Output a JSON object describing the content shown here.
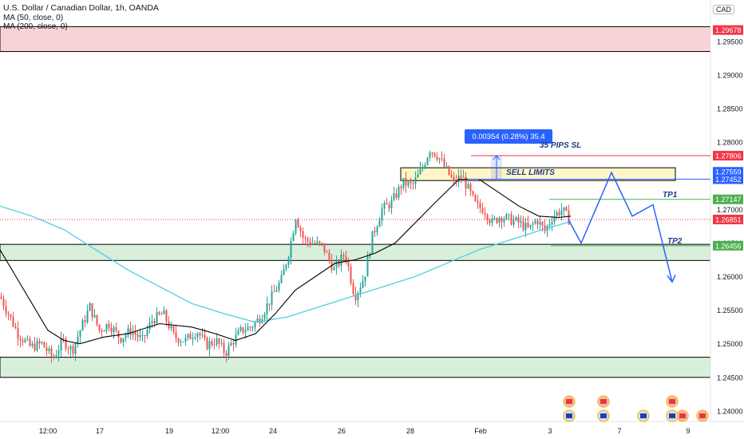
{
  "header": {
    "title": "U.S. Dollar / Canadian Dollar, 1h, OANDA",
    "ma1": "MA (50, close, 0)",
    "ma2": "MA (200, close, 0)",
    "currency": "CAD"
  },
  "colors": {
    "up": "#26a69a",
    "down": "#ef5350",
    "ma50": "#000000",
    "ma200": "#4dd0e1",
    "projection": "#2962ff",
    "price_tag": "#f23645",
    "zone_red": "#f8d3d6",
    "zone_green": "#d7efdb",
    "zone_yellow": "#fff6c8",
    "tp_line": "#4caf50"
  },
  "chart_data": {
    "type": "candlestick",
    "symbol": "USDCAD",
    "interval": "1h",
    "y_range": [
      1.2388,
      1.2982
    ],
    "y_ticks": [
      "1.29500",
      "1.29000",
      "1.28500",
      "1.28000",
      "1.27500",
      "1.27000",
      "1.26500",
      "1.26000",
      "1.25500",
      "1.25000",
      "1.24500",
      "1.24000"
    ],
    "x_ticks": [
      "12:00",
      "17",
      "19",
      "12:00",
      "24",
      "26",
      "28",
      "Feb",
      "3",
      "7",
      "9"
    ],
    "price_path": [
      [
        0,
        1.257
      ],
      [
        10,
        1.2545
      ],
      [
        22,
        1.2515
      ],
      [
        38,
        1.2495
      ],
      [
        52,
        1.25
      ],
      [
        66,
        1.2478
      ],
      [
        78,
        1.2505
      ],
      [
        90,
        1.249
      ],
      [
        100,
        1.252
      ],
      [
        112,
        1.2555
      ],
      [
        124,
        1.252
      ],
      [
        136,
        1.253
      ],
      [
        150,
        1.2508
      ],
      [
        164,
        1.252
      ],
      [
        178,
        1.2505
      ],
      [
        190,
        1.2535
      ],
      [
        204,
        1.2545
      ],
      [
        218,
        1.251
      ],
      [
        232,
        1.2505
      ],
      [
        246,
        1.252
      ],
      [
        258,
        1.2498
      ],
      [
        270,
        1.2505
      ],
      [
        282,
        1.2486
      ],
      [
        292,
        1.2505
      ],
      [
        302,
        1.252
      ],
      [
        314,
        1.2525
      ],
      [
        326,
        1.254
      ],
      [
        340,
        1.257
      ],
      [
        352,
        1.2595
      ],
      [
        362,
        1.264
      ],
      [
        370,
        1.269
      ],
      [
        380,
        1.2655
      ],
      [
        392,
        1.265
      ],
      [
        404,
        1.2645
      ],
      [
        418,
        1.261
      ],
      [
        432,
        1.2635
      ],
      [
        444,
        1.257
      ],
      [
        456,
        1.26
      ],
      [
        466,
        1.266
      ],
      [
        478,
        1.27
      ],
      [
        490,
        1.271
      ],
      [
        504,
        1.274
      ],
      [
        516,
        1.2735
      ],
      [
        528,
        1.276
      ],
      [
        538,
        1.279
      ],
      [
        548,
        1.278
      ],
      [
        558,
        1.276
      ],
      [
        568,
        1.274
      ],
      [
        578,
        1.275
      ],
      [
        586,
        1.273
      ],
      [
        596,
        1.2705
      ],
      [
        606,
        1.27
      ],
      [
        616,
        1.268
      ],
      [
        626,
        1.269
      ],
      [
        638,
        1.2685
      ],
      [
        650,
        1.268
      ],
      [
        662,
        1.267
      ],
      [
        672,
        1.2685
      ],
      [
        682,
        1.2668
      ],
      [
        692,
        1.269
      ],
      [
        704,
        1.27
      ],
      [
        712,
        1.2685
      ]
    ],
    "ma50": [
      [
        0,
        1.264
      ],
      [
        20,
        1.26
      ],
      [
        40,
        1.256
      ],
      [
        60,
        1.252
      ],
      [
        80,
        1.2505
      ],
      [
        100,
        1.25
      ],
      [
        130,
        1.251
      ],
      [
        160,
        1.2515
      ],
      [
        200,
        1.253
      ],
      [
        240,
        1.2525
      ],
      [
        270,
        1.2515
      ],
      [
        295,
        1.2505
      ],
      [
        320,
        1.2515
      ],
      [
        345,
        1.2545
      ],
      [
        370,
        1.258
      ],
      [
        395,
        1.26
      ],
      [
        420,
        1.262
      ],
      [
        445,
        1.2625
      ],
      [
        470,
        1.2635
      ],
      [
        495,
        1.265
      ],
      [
        520,
        1.268
      ],
      [
        545,
        1.271
      ],
      [
        575,
        1.2745
      ],
      [
        600,
        1.2745
      ],
      [
        625,
        1.2725
      ],
      [
        650,
        1.2705
      ],
      [
        675,
        1.269
      ],
      [
        700,
        1.2688
      ],
      [
        715,
        1.269
      ]
    ],
    "ma200": [
      [
        0,
        1.2705
      ],
      [
        40,
        1.269
      ],
      [
        80,
        1.267
      ],
      [
        120,
        1.264
      ],
      [
        160,
        1.261
      ],
      [
        200,
        1.2585
      ],
      [
        240,
        1.256
      ],
      [
        280,
        1.2545
      ],
      [
        320,
        1.2532
      ],
      [
        360,
        1.254
      ],
      [
        400,
        1.2555
      ],
      [
        440,
        1.257
      ],
      [
        480,
        1.2585
      ],
      [
        520,
        1.26
      ],
      [
        560,
        1.262
      ],
      [
        600,
        1.264
      ],
      [
        640,
        1.2655
      ],
      [
        680,
        1.267
      ],
      [
        715,
        1.2682
      ]
    ],
    "zones": [
      {
        "kind": "resistance",
        "top": 1.2972,
        "bottom": 1.2935
      },
      {
        "kind": "sell_limits",
        "top": 1.2762,
        "bottom": 1.2743
      },
      {
        "kind": "support",
        "top": 1.2648,
        "bottom": 1.2624
      },
      {
        "kind": "support",
        "top": 1.248,
        "bottom": 1.245
      }
    ],
    "levels": [
      {
        "price": 1.2967,
        "label": "1.29678",
        "color": "#f23645"
      },
      {
        "price": 1.278,
        "label": "1.27806",
        "color": "#f23645"
      },
      {
        "price": 1.2756,
        "label": "1.27559",
        "color": "#2962ff"
      },
      {
        "price": 1.2745,
        "label": "1.27452",
        "color": "#2962ff"
      },
      {
        "price": 1.2715,
        "label": "1.27147",
        "color": "#4caf50"
      },
      {
        "price": 1.2685,
        "label": "1.26851",
        "color": "#f23645"
      },
      {
        "price": 1.2646,
        "label": "1.26456",
        "color": "#4caf50"
      }
    ],
    "measure": {
      "label": "0.00354 (0.28%) 35.4"
    },
    "annotations": [
      "35 PIPS SL",
      "SELL LIMITS",
      "TP1",
      "TP2"
    ],
    "projection": [
      [
        712,
        1.2685
      ],
      [
        728,
        1.265
      ],
      [
        766,
        1.2755
      ],
      [
        792,
        1.269
      ],
      [
        818,
        1.2707
      ],
      [
        842,
        1.2592
      ]
    ]
  }
}
